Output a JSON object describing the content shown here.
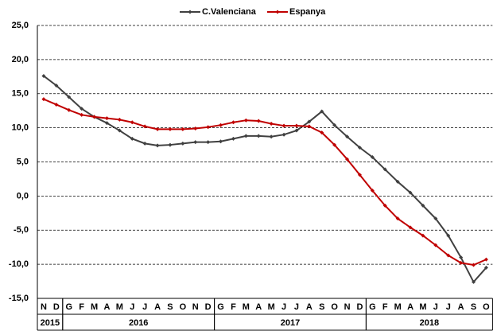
{
  "chart_data": {
    "type": "line",
    "categories": [
      "N",
      "D",
      "G",
      "F",
      "M",
      "A",
      "M",
      "J",
      "J",
      "A",
      "S",
      "O",
      "N",
      "D",
      "G",
      "F",
      "M",
      "A",
      "M",
      "J",
      "J",
      "A",
      "S",
      "O",
      "N",
      "D",
      "G",
      "F",
      "M",
      "A",
      "M",
      "J",
      "J",
      "A",
      "S",
      "O"
    ],
    "year_groups": [
      {
        "label": "2015",
        "start": 0,
        "end": 1
      },
      {
        "label": "2016",
        "start": 2,
        "end": 13
      },
      {
        "label": "2017",
        "start": 14,
        "end": 25
      },
      {
        "label": "2018",
        "start": 26,
        "end": 35
      }
    ],
    "series": [
      {
        "name": "C.Valenciana",
        "color": "#404040",
        "values": [
          17.6,
          16.2,
          14.5,
          12.8,
          11.6,
          10.7,
          9.6,
          8.4,
          7.7,
          7.4,
          7.5,
          7.7,
          7.9,
          7.9,
          8.0,
          8.4,
          8.8,
          8.8,
          8.7,
          9.0,
          9.6,
          10.9,
          12.4,
          10.4,
          8.7,
          7.1,
          5.7,
          3.9,
          2.1,
          0.5,
          -1.4,
          -3.3,
          -5.8,
          -9.0,
          -12.6,
          -10.5
        ]
      },
      {
        "name": "Espanya",
        "color": "#c00000",
        "values": [
          14.2,
          13.4,
          12.6,
          11.9,
          11.6,
          11.4,
          11.2,
          10.8,
          10.2,
          9.8,
          9.8,
          9.8,
          9.9,
          10.1,
          10.4,
          10.8,
          11.1,
          11.0,
          10.6,
          10.3,
          10.3,
          10.2,
          9.3,
          7.5,
          5.4,
          3.1,
          0.8,
          -1.4,
          -3.3,
          -4.6,
          -5.8,
          -7.2,
          -8.7,
          -9.8,
          -10.1,
          -9.3
        ]
      }
    ],
    "ylim": [
      -15,
      25
    ],
    "yticks": [
      {
        "value": -15,
        "label": "-15,0"
      },
      {
        "value": -10,
        "label": "-10,0"
      },
      {
        "value": -5,
        "label": "-5,0"
      },
      {
        "value": 0,
        "label": "0,0"
      },
      {
        "value": 5,
        "label": "5,0"
      },
      {
        "value": 10,
        "label": "10,0"
      },
      {
        "value": 15,
        "label": "15,0"
      },
      {
        "value": 20,
        "label": "20,0"
      },
      {
        "value": 25,
        "label": "25,0"
      }
    ],
    "grid": true,
    "legend": "top"
  }
}
